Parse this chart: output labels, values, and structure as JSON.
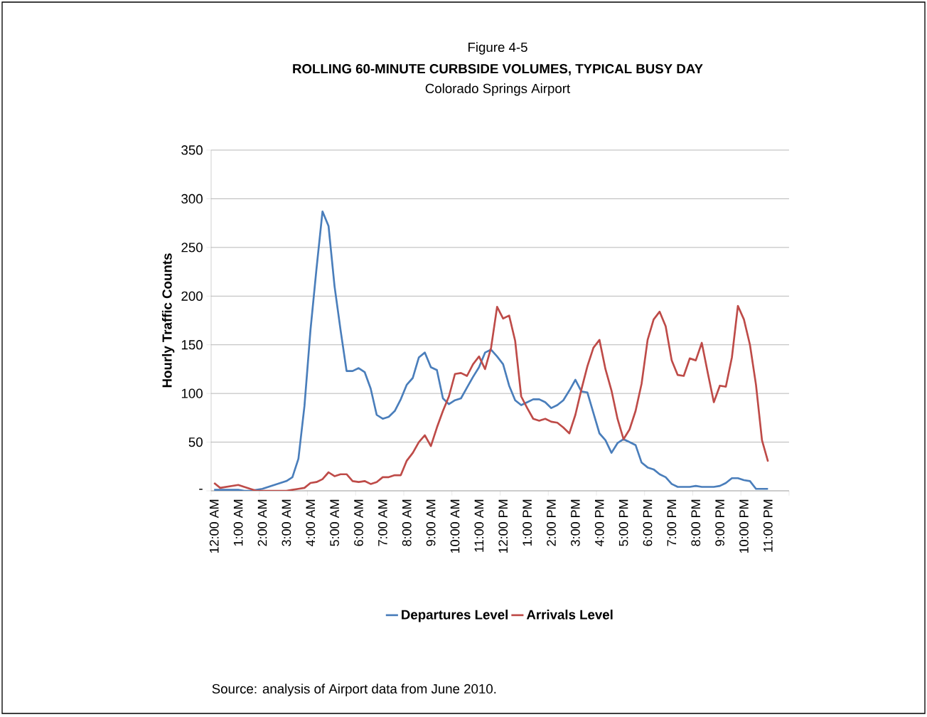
{
  "chart_data": {
    "type": "line",
    "title": "ROLLING 60-MINUTE CURBSIDE VOLUMES, TYPICAL BUSY DAY",
    "subtitle": "Colorado Springs Airport",
    "ylabel": "Hourly Traffic Counts",
    "annotations": [
      "Figure 4-5",
      "Source:  analysis of Airport data from June 2010."
    ],
    "categories": [
      "12:00 AM",
      null,
      null,
      null,
      "1:00 AM",
      null,
      null,
      null,
      "2:00 AM",
      null,
      null,
      null,
      "3:00 AM",
      null,
      null,
      null,
      "4:00 AM",
      null,
      null,
      null,
      "5:00 AM",
      null,
      null,
      null,
      "6:00 AM",
      null,
      null,
      null,
      "7:00 AM",
      null,
      null,
      null,
      "8:00 AM",
      null,
      null,
      null,
      "9:00 AM",
      null,
      null,
      null,
      "10:00 AM",
      null,
      null,
      null,
      "11:00 AM",
      null,
      null,
      null,
      "12:00 PM",
      null,
      null,
      null,
      "1:00 PM",
      null,
      null,
      null,
      "2:00 PM",
      null,
      null,
      null,
      "3:00 PM",
      null,
      null,
      null,
      "4:00 PM",
      null,
      null,
      null,
      "5:00 PM",
      null,
      null,
      null,
      "6:00 PM",
      null,
      null,
      null,
      "7:00 PM",
      null,
      null,
      null,
      "8:00 PM",
      null,
      null,
      null,
      "9:00 PM",
      null,
      null,
      null,
      "10:00 PM",
      null,
      null,
      null,
      "11:00 PM",
      null,
      null,
      null
    ],
    "series": [
      {
        "name": "Departures Level",
        "color": "#4a7ebb",
        "values": [
          1,
          1,
          1,
          1,
          1,
          0,
          0,
          1,
          2,
          4,
          6,
          8,
          10,
          14,
          33,
          87,
          165,
          228,
          287,
          272,
          210,
          165,
          123,
          123,
          126,
          122,
          105,
          78,
          74,
          76,
          82,
          94,
          109,
          116,
          137,
          142,
          127,
          124,
          95,
          89,
          93,
          95,
          106,
          117,
          127,
          142,
          145,
          138,
          130,
          108,
          93,
          88,
          91,
          94,
          94,
          91,
          85,
          88,
          93,
          103,
          114,
          102,
          101,
          80,
          59,
          52,
          39,
          49,
          53,
          50,
          47,
          29,
          24,
          22,
          17,
          14,
          7,
          4,
          4,
          4,
          5,
          4,
          4,
          4,
          5,
          8,
          13,
          13,
          11,
          10,
          2,
          2,
          2,
          null,
          null,
          null
        ]
      },
      {
        "name": "Arrivals Level",
        "color": "#be4b48",
        "values": [
          8,
          3,
          4,
          5,
          6,
          4,
          2,
          0,
          0,
          0,
          0,
          0,
          0,
          1,
          2,
          3,
          8,
          9,
          12,
          19,
          15,
          17,
          17,
          10,
          9,
          10,
          7,
          9,
          14,
          14,
          16,
          16,
          31,
          39,
          50,
          57,
          46,
          65,
          82,
          97,
          120,
          121,
          118,
          130,
          138,
          125,
          147,
          189,
          177,
          180,
          154,
          97,
          85,
          74,
          72,
          74,
          71,
          70,
          65,
          59,
          78,
          104,
          128,
          147,
          155,
          125,
          103,
          74,
          53,
          63,
          82,
          110,
          155,
          176,
          184,
          169,
          134,
          119,
          118,
          136,
          134,
          152,
          121,
          91,
          108,
          107,
          137,
          190,
          176,
          150,
          109,
          52,
          30,
          null,
          null,
          null
        ]
      }
    ],
    "ylim": [
      0,
      350
    ],
    "yticks": [
      {
        "value": 0,
        "label": "-"
      },
      50,
      100,
      150,
      200,
      250,
      300,
      350
    ],
    "grid": "y",
    "legend": "bottom",
    "marker": "none",
    "line_style": "solid"
  }
}
